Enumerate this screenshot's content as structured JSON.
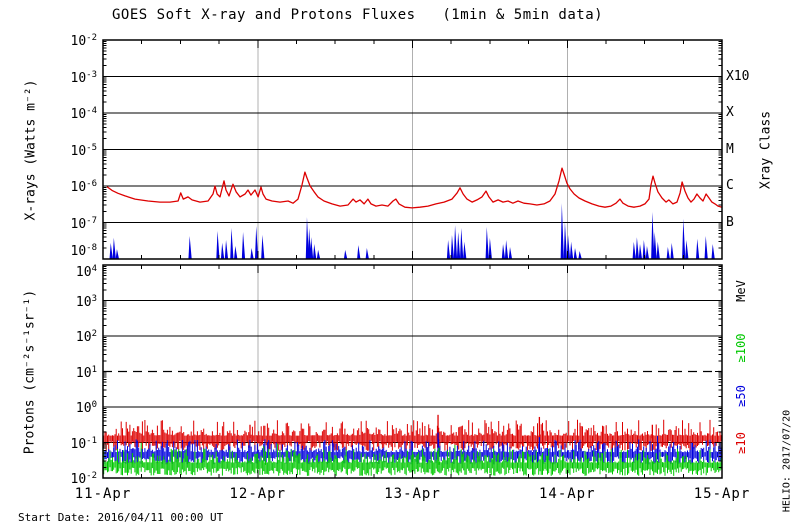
{
  "title": "GOES Soft X-ray and Protons Fluxes   (1min & 5min data)",
  "footer": {
    "start_date": "Start Date: 2016/04/11 00:00 UT"
  },
  "credit": "HELIO: 2017/07/20",
  "colors": {
    "xray_long_red": "#dd0000",
    "xray_short_blue": "#0000dd",
    "proton_ge10_red": "#dd0000",
    "proton_ge50_blue": "#0000dd",
    "proton_ge100_green": "#00c800",
    "day_gridline_gray": "#b0b0b0",
    "axis_black": "#000000",
    "background": "#ffffff"
  },
  "x_axis": {
    "tick_labels": [
      "11-Apr",
      "12-Apr",
      "13-Apr",
      "14-Apr",
      "15-Apr"
    ],
    "day_span": 4,
    "minor_ticks_per_day": 4,
    "day_gridlines": [
      1,
      2,
      3
    ]
  },
  "chart_data": [
    {
      "id": "xray-panel",
      "type": "line",
      "ylabel": "X-rays (Watts m⁻²)",
      "right_axis_title": "Xray Class",
      "ylim_exp": [
        -8,
        -2
      ],
      "ytick_exps": [
        -2,
        -3,
        -4,
        -5,
        -6,
        -7,
        -8
      ],
      "solid_gridline_exps": [
        -3,
        -4,
        -5,
        -6,
        -7
      ],
      "dashed_gridline_exps": [],
      "class_labels": [
        {
          "text": "X10",
          "exp": -3
        },
        {
          "text": "X",
          "exp": -4
        },
        {
          "text": "M",
          "exp": -5
        },
        {
          "text": "C",
          "exp": -6
        },
        {
          "text": "B",
          "exp": -7
        }
      ],
      "series": [
        {
          "name": "goes-xray-long-1-8A",
          "color": "#dd0000",
          "style": "polyline",
          "points": [
            [
              0.026,
              -6.02
            ],
            [
              0.058,
              -6.12
            ],
            [
              0.097,
              -6.2
            ],
            [
              0.142,
              -6.27
            ],
            [
              0.207,
              -6.36
            ],
            [
              0.291,
              -6.41
            ],
            [
              0.368,
              -6.44
            ],
            [
              0.433,
              -6.44
            ],
            [
              0.485,
              -6.41
            ],
            [
              0.502,
              -6.19
            ],
            [
              0.519,
              -6.36
            ],
            [
              0.549,
              -6.3
            ],
            [
              0.575,
              -6.38
            ],
            [
              0.627,
              -6.44
            ],
            [
              0.679,
              -6.41
            ],
            [
              0.711,
              -6.22
            ],
            [
              0.724,
              -6.0
            ],
            [
              0.737,
              -6.22
            ],
            [
              0.756,
              -6.3
            ],
            [
              0.782,
              -5.86
            ],
            [
              0.795,
              -6.11
            ],
            [
              0.814,
              -6.27
            ],
            [
              0.84,
              -5.95
            ],
            [
              0.86,
              -6.16
            ],
            [
              0.885,
              -6.3
            ],
            [
              0.918,
              -6.22
            ],
            [
              0.937,
              -6.11
            ],
            [
              0.956,
              -6.25
            ],
            [
              0.982,
              -6.11
            ],
            [
              1.002,
              -6.3
            ],
            [
              1.021,
              -6.03
            ],
            [
              1.034,
              -6.22
            ],
            [
              1.053,
              -6.36
            ],
            [
              1.092,
              -6.41
            ],
            [
              1.144,
              -6.44
            ],
            [
              1.196,
              -6.41
            ],
            [
              1.228,
              -6.47
            ],
            [
              1.26,
              -6.36
            ],
            [
              1.286,
              -5.97
            ],
            [
              1.305,
              -5.62
            ],
            [
              1.318,
              -5.78
            ],
            [
              1.338,
              -6.0
            ],
            [
              1.364,
              -6.16
            ],
            [
              1.389,
              -6.3
            ],
            [
              1.428,
              -6.41
            ],
            [
              1.48,
              -6.49
            ],
            [
              1.532,
              -6.55
            ],
            [
              1.583,
              -6.52
            ],
            [
              1.616,
              -6.36
            ],
            [
              1.635,
              -6.44
            ],
            [
              1.661,
              -6.38
            ],
            [
              1.687,
              -6.49
            ],
            [
              1.712,
              -6.36
            ],
            [
              1.732,
              -6.49
            ],
            [
              1.764,
              -6.55
            ],
            [
              1.803,
              -6.52
            ],
            [
              1.842,
              -6.55
            ],
            [
              1.874,
              -6.41
            ],
            [
              1.893,
              -6.36
            ],
            [
              1.913,
              -6.49
            ],
            [
              1.951,
              -6.58
            ],
            [
              1.997,
              -6.6
            ],
            [
              2.048,
              -6.58
            ],
            [
              2.1,
              -6.55
            ],
            [
              2.152,
              -6.49
            ],
            [
              2.204,
              -6.44
            ],
            [
              2.255,
              -6.36
            ],
            [
              2.288,
              -6.19
            ],
            [
              2.307,
              -6.05
            ],
            [
              2.327,
              -6.22
            ],
            [
              2.352,
              -6.36
            ],
            [
              2.385,
              -6.44
            ],
            [
              2.417,
              -6.38
            ],
            [
              2.449,
              -6.3
            ],
            [
              2.475,
              -6.14
            ],
            [
              2.494,
              -6.3
            ],
            [
              2.52,
              -6.44
            ],
            [
              2.553,
              -6.38
            ],
            [
              2.585,
              -6.44
            ],
            [
              2.617,
              -6.41
            ],
            [
              2.649,
              -6.47
            ],
            [
              2.682,
              -6.41
            ],
            [
              2.72,
              -6.47
            ],
            [
              2.759,
              -6.49
            ],
            [
              2.804,
              -6.52
            ],
            [
              2.85,
              -6.49
            ],
            [
              2.888,
              -6.41
            ],
            [
              2.921,
              -6.22
            ],
            [
              2.947,
              -5.86
            ],
            [
              2.966,
              -5.51
            ],
            [
              2.979,
              -5.67
            ],
            [
              2.998,
              -5.92
            ],
            [
              3.018,
              -6.08
            ],
            [
              3.044,
              -6.22
            ],
            [
              3.076,
              -6.33
            ],
            [
              3.115,
              -6.41
            ],
            [
              3.16,
              -6.49
            ],
            [
              3.205,
              -6.55
            ],
            [
              3.244,
              -6.58
            ],
            [
              3.283,
              -6.55
            ],
            [
              3.315,
              -6.47
            ],
            [
              3.341,
              -6.36
            ],
            [
              3.36,
              -6.47
            ],
            [
              3.393,
              -6.55
            ],
            [
              3.431,
              -6.58
            ],
            [
              3.47,
              -6.55
            ],
            [
              3.502,
              -6.49
            ],
            [
              3.528,
              -6.36
            ],
            [
              3.541,
              -5.97
            ],
            [
              3.554,
              -5.73
            ],
            [
              3.567,
              -5.92
            ],
            [
              3.586,
              -6.16
            ],
            [
              3.612,
              -6.33
            ],
            [
              3.638,
              -6.44
            ],
            [
              3.657,
              -6.38
            ],
            [
              3.683,
              -6.49
            ],
            [
              3.709,
              -6.44
            ],
            [
              3.729,
              -6.19
            ],
            [
              3.742,
              -5.89
            ],
            [
              3.761,
              -6.14
            ],
            [
              3.78,
              -6.33
            ],
            [
              3.8,
              -6.44
            ],
            [
              3.819,
              -6.36
            ],
            [
              3.838,
              -6.22
            ],
            [
              3.858,
              -6.33
            ],
            [
              3.877,
              -6.41
            ],
            [
              3.897,
              -6.22
            ],
            [
              3.916,
              -6.33
            ],
            [
              3.935,
              -6.44
            ],
            [
              3.955,
              -6.49
            ],
            [
              3.974,
              -6.55
            ],
            [
              4.0,
              -6.58
            ]
          ]
        },
        {
          "name": "goes-xray-short-0.5-4A",
          "color": "#0000dd",
          "style": "spikes",
          "baseline_log": -8,
          "spikes": [
            [
              0.05,
              -7.56
            ],
            [
              0.07,
              -7.42
            ],
            [
              0.09,
              -7.73
            ],
            [
              0.56,
              -7.37
            ],
            [
              0.74,
              -7.23
            ],
            [
              0.77,
              -7.56
            ],
            [
              0.795,
              -7.48
            ],
            [
              0.83,
              -7.15
            ],
            [
              0.855,
              -7.64
            ],
            [
              0.905,
              -7.26
            ],
            [
              0.96,
              -7.7
            ],
            [
              0.99,
              -7.1
            ],
            [
              1.03,
              -7.34
            ],
            [
              1.318,
              -6.85
            ],
            [
              1.332,
              -7.15
            ],
            [
              1.345,
              -7.4
            ],
            [
              1.365,
              -7.59
            ],
            [
              1.39,
              -7.75
            ],
            [
              1.565,
              -7.75
            ],
            [
              1.65,
              -7.62
            ],
            [
              1.705,
              -7.7
            ],
            [
              2.23,
              -7.48
            ],
            [
              2.255,
              -7.34
            ],
            [
              2.275,
              -7.07
            ],
            [
              2.295,
              -7.26
            ],
            [
              2.315,
              -7.15
            ],
            [
              2.335,
              -7.53
            ],
            [
              2.48,
              -7.12
            ],
            [
              2.5,
              -7.42
            ],
            [
              2.585,
              -7.59
            ],
            [
              2.605,
              -7.48
            ],
            [
              2.63,
              -7.67
            ],
            [
              2.965,
              -6.47
            ],
            [
              2.985,
              -6.99
            ],
            [
              3.005,
              -7.34
            ],
            [
              3.025,
              -7.53
            ],
            [
              3.05,
              -7.7
            ],
            [
              3.08,
              -7.78
            ],
            [
              3.43,
              -7.53
            ],
            [
              3.45,
              -7.4
            ],
            [
              3.47,
              -7.59
            ],
            [
              3.495,
              -7.48
            ],
            [
              3.515,
              -7.64
            ],
            [
              3.55,
              -6.71
            ],
            [
              3.565,
              -7.26
            ],
            [
              3.585,
              -7.53
            ],
            [
              3.65,
              -7.67
            ],
            [
              3.675,
              -7.56
            ],
            [
              3.75,
              -6.9
            ],
            [
              3.77,
              -7.48
            ],
            [
              3.84,
              -7.45
            ],
            [
              3.895,
              -7.37
            ],
            [
              3.94,
              -7.59
            ]
          ]
        }
      ]
    },
    {
      "id": "proton-panel",
      "type": "line",
      "ylabel": "Protons (cm⁻²s⁻¹sr⁻¹)",
      "ylim_exp": [
        -2,
        4
      ],
      "ytick_exps": [
        4,
        3,
        2,
        1,
        0,
        -1,
        -2
      ],
      "solid_gridline_exps": [
        3,
        2,
        0,
        -1
      ],
      "dashed_gridline_exps": [
        1
      ],
      "energy_labels": [
        {
          "text": "MeV",
          "color": "#000000"
        },
        {
          "text": "≥100",
          "color": "#00c800"
        },
        {
          "text": "≥50",
          "color": "#0000dd"
        },
        {
          "text": "≥10",
          "color": "#dd0000"
        }
      ],
      "series": [
        {
          "name": "protons-ge10MeV",
          "color": "#dd0000",
          "style": "noise_band",
          "center_log": -0.88,
          "amp_log": 0.3,
          "seed": 101,
          "spikes": [
            [
              0.95,
              -0.5
            ],
            [
              2.165,
              -0.22
            ],
            [
              2.82,
              -0.28
            ],
            [
              3.55,
              -0.5
            ]
          ]
        },
        {
          "name": "protons-ge50MeV",
          "color": "#0000dd",
          "style": "noise_band",
          "center_log": -1.33,
          "amp_log": 0.24,
          "seed": 202,
          "spikes": [
            [
              2.165,
              -0.72
            ],
            [
              2.82,
              -0.85
            ]
          ]
        },
        {
          "name": "protons-ge100MeV",
          "color": "#00c800",
          "style": "noise_band",
          "center_log": -1.63,
          "amp_log": 0.26,
          "seed": 303,
          "spikes": [
            [
              1.05,
              -1.25
            ],
            [
              2.17,
              -1.15
            ],
            [
              3.2,
              -1.3
            ]
          ]
        }
      ]
    }
  ]
}
